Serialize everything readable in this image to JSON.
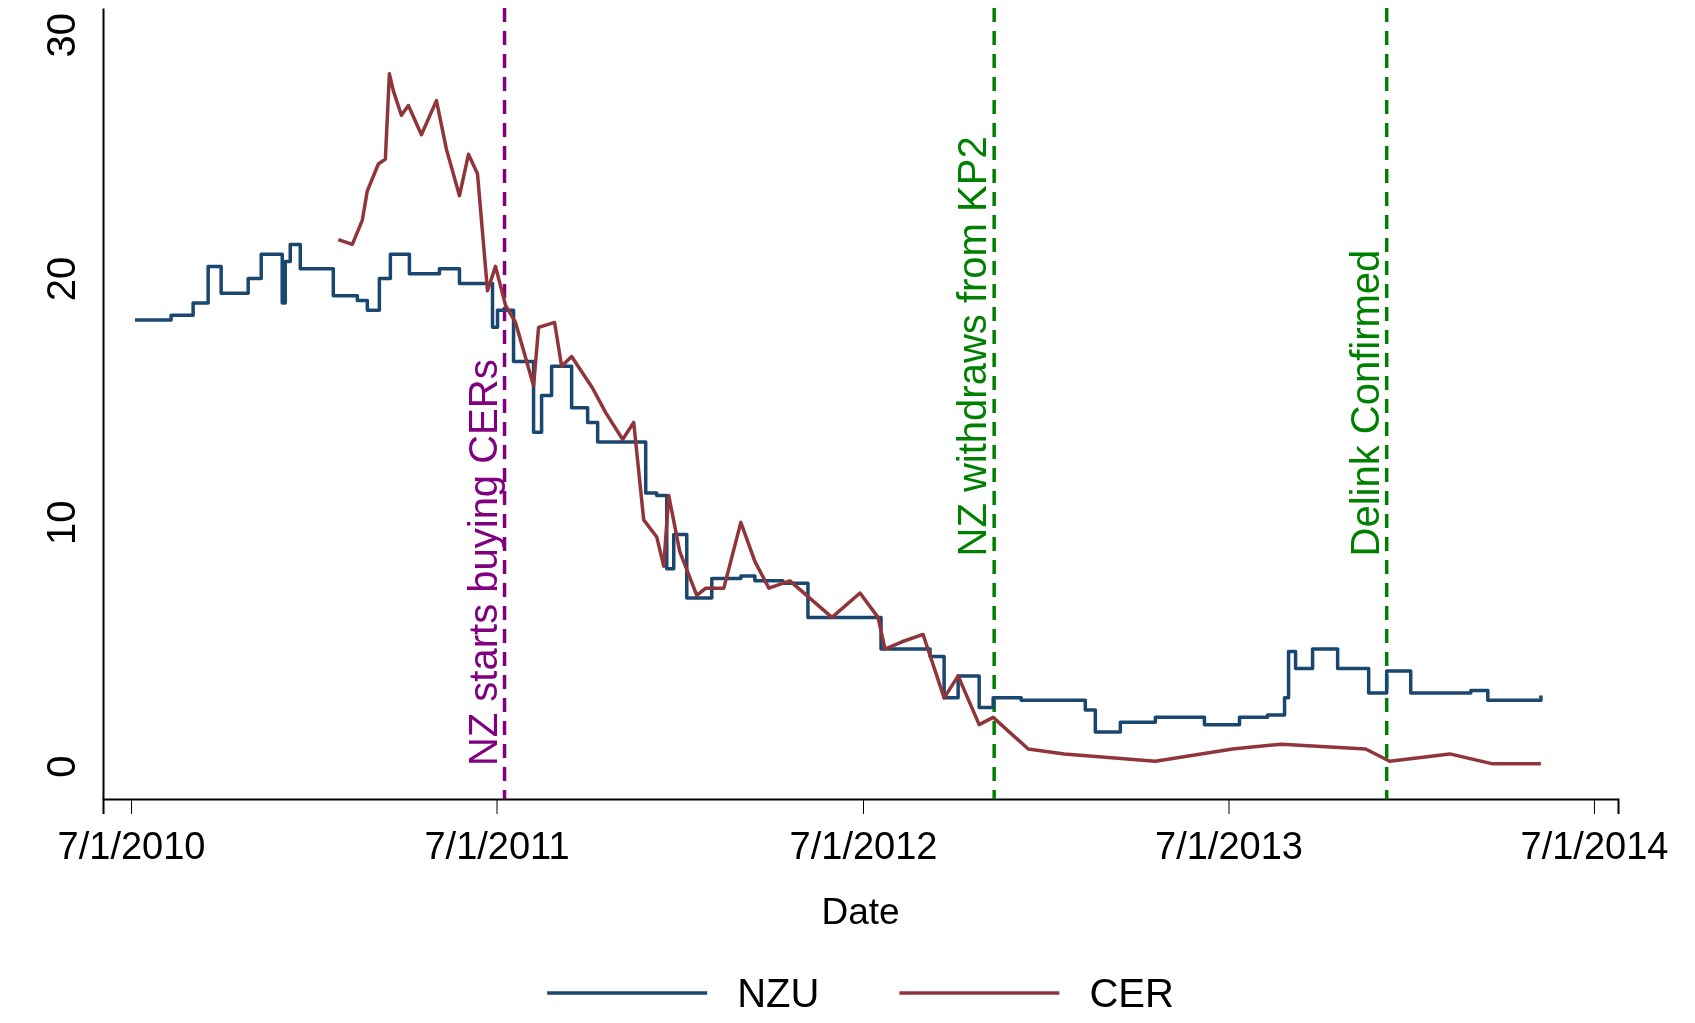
{
  "chart_data": {
    "type": "line",
    "xlabel": "Date",
    "xlim": [
      "2010-06-03",
      "2014-07-25"
    ],
    "ylim": [
      -1.35,
      31.1
    ],
    "xticks": [
      {
        "value": "2010-07-01",
        "label": "7/1/2010"
      },
      {
        "value": "2011-07-01",
        "label": "7/1/2011"
      },
      {
        "value": "2012-07-01",
        "label": "7/1/2012"
      },
      {
        "value": "2013-07-01",
        "label": "7/1/2013"
      },
      {
        "value": "2014-07-01",
        "label": "7/1/2014"
      }
    ],
    "yticks": [
      0,
      10,
      20,
      30
    ],
    "grid": false,
    "legend": "bottom",
    "line_style": "solid",
    "marker": "none",
    "ref_lines": [
      {
        "axis": "x",
        "value": "2011-07-09",
        "label": "NZ starts buying CERs",
        "color": "#800080",
        "line_style": "dashed"
      },
      {
        "axis": "x",
        "value": "2012-11-09",
        "label": "NZ withdraws from KP2",
        "color": "#008000",
        "line_style": "dashed"
      },
      {
        "axis": "x",
        "value": "2013-12-06",
        "label": "Delink Confirmed",
        "color": "#008000",
        "line_style": "dashed"
      }
    ],
    "series": [
      {
        "name": "NZU",
        "type": "step",
        "color": "#1a476f",
        "x": [
          "2010-07-05",
          "2010-08-10",
          "2010-09-01",
          "2010-09-16",
          "2010-09-29",
          "2010-10-26",
          "2010-11-08",
          "2010-11-29",
          "2010-12-02",
          "2010-12-07",
          "2010-12-17",
          "2011-01-19",
          "2011-02-12",
          "2011-02-22",
          "2011-03-06",
          "2011-03-17",
          "2011-04-05",
          "2011-05-05",
          "2011-05-25",
          "2011-06-27",
          "2011-07-02",
          "2011-07-18",
          "2011-08-07",
          "2011-08-15",
          "2011-08-25",
          "2011-09-14",
          "2011-09-30",
          "2011-10-10",
          "2011-11-27",
          "2011-12-08",
          "2011-12-18",
          "2011-12-25",
          "2012-01-07",
          "2012-02-01",
          "2012-03-01",
          "2012-03-15",
          "2012-04-12",
          "2012-05-07",
          "2012-07-19",
          "2012-09-06",
          "2012-09-20",
          "2012-10-04",
          "2012-10-25",
          "2012-11-08",
          "2012-12-06",
          "2013-02-08",
          "2013-02-18",
          "2013-03-15",
          "2013-04-19",
          "2013-06-07",
          "2013-07-12",
          "2013-08-09",
          "2013-08-26",
          "2013-08-30",
          "2013-09-06",
          "2013-09-23",
          "2013-10-18",
          "2013-11-18",
          "2013-12-06",
          "2013-12-30",
          "2014-02-28",
          "2014-03-17",
          "2014-05-09"
        ],
        "values": [
          18.3,
          18.5,
          19.0,
          20.5,
          19.4,
          20.0,
          21.0,
          19.0,
          20.7,
          21.4,
          20.4,
          19.3,
          19.1,
          18.7,
          20.0,
          21.0,
          20.2,
          20.4,
          19.8,
          18.0,
          18.7,
          16.6,
          13.7,
          15.2,
          16.4,
          14.7,
          14.1,
          13.3,
          11.2,
          11.1,
          8.1,
          9.5,
          6.9,
          7.7,
          7.8,
          7.6,
          7.5,
          6.1,
          4.8,
          4.5,
          2.8,
          3.7,
          2.4,
          2.8,
          2.7,
          2.3,
          1.4,
          1.8,
          2.0,
          1.7,
          2.0,
          2.1,
          2.8,
          4.7,
          4.0,
          4.8,
          4.0,
          3.0,
          3.9,
          3.0,
          3.1,
          2.7,
          2.9
        ]
      },
      {
        "name": "CER",
        "color": "#90353b",
        "x": [
          "2011-01-24",
          "2011-02-07",
          "2011-02-17",
          "2011-02-22",
          "2011-03-05",
          "2011-03-12",
          "2011-03-16",
          "2011-03-20",
          "2011-03-28",
          "2011-04-04",
          "2011-04-17",
          "2011-05-02",
          "2011-05-12",
          "2011-05-25",
          "2011-06-03",
          "2011-06-12",
          "2011-06-22",
          "2011-06-30",
          "2011-07-10",
          "2011-07-20",
          "2011-08-07",
          "2011-08-12",
          "2011-08-28",
          "2011-09-04",
          "2011-09-14",
          "2011-10-05",
          "2011-10-18",
          "2011-11-04",
          "2011-11-15",
          "2011-11-25",
          "2011-12-08",
          "2011-12-15",
          "2011-12-20",
          "2011-12-31",
          "2012-01-17",
          "2012-01-26",
          "2012-02-13",
          "2012-03-01",
          "2012-03-15",
          "2012-03-29",
          "2012-04-19",
          "2012-05-31",
          "2012-06-28",
          "2012-07-16",
          "2012-07-23",
          "2012-08-09",
          "2012-08-30",
          "2012-09-20",
          "2012-10-04",
          "2012-10-25",
          "2012-11-08",
          "2012-12-13",
          "2013-01-18",
          "2013-04-19",
          "2013-07-05",
          "2013-08-23",
          "2013-11-15",
          "2013-12-09",
          "2014-02-07",
          "2014-03-21",
          "2014-05-09"
        ],
        "values": [
          21.6,
          21.4,
          22.4,
          23.6,
          24.7,
          24.9,
          28.4,
          27.7,
          26.7,
          27.1,
          25.9,
          27.3,
          25.3,
          23.4,
          25.1,
          24.3,
          19.5,
          20.5,
          18.9,
          18.2,
          15.6,
          18.0,
          18.2,
          16.4,
          16.8,
          15.5,
          14.5,
          13.4,
          14.1,
          10.1,
          9.4,
          8.2,
          11.1,
          8.8,
          7.0,
          7.3,
          7.3,
          10.0,
          8.4,
          7.3,
          7.6,
          6.1,
          7.1,
          6.1,
          4.8,
          5.1,
          5.4,
          2.8,
          3.7,
          1.7,
          2.0,
          0.7,
          0.5,
          0.2,
          0.7,
          0.9,
          0.7,
          0.2,
          0.5,
          0.1,
          0.1
        ]
      }
    ]
  }
}
